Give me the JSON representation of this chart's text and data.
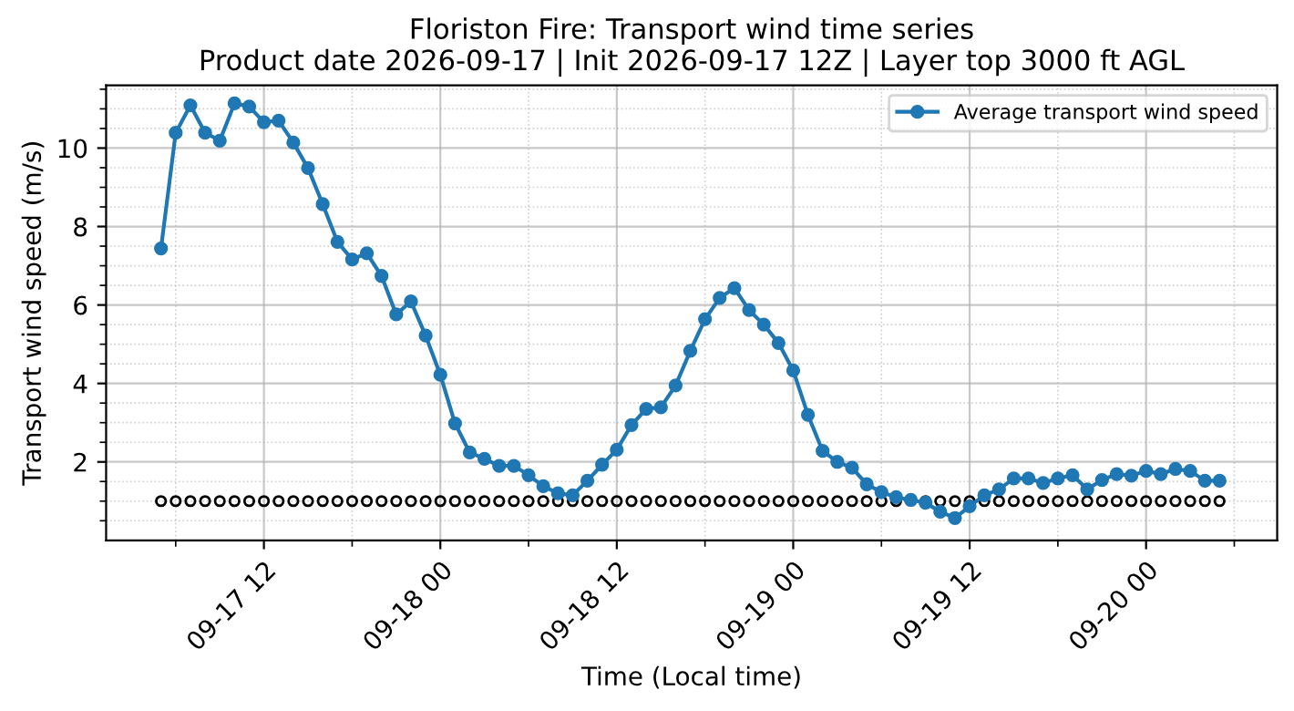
{
  "chart_data": {
    "type": "line",
    "title": "Floriston Fire: Transport wind time series\nProduct date 2026-09-17 | Init 2026-09-17 12Z | Layer top 3000 ft AGL",
    "xlabel": "Time (Local time)",
    "ylabel": "Transport wind speed (m/s)",
    "x": [
      "2026-09-17T05:00",
      "2026-09-17T06:00",
      "2026-09-17T07:00",
      "2026-09-17T08:00",
      "2026-09-17T09:00",
      "2026-09-17T10:00",
      "2026-09-17T11:00",
      "2026-09-17T12:00",
      "2026-09-17T13:00",
      "2026-09-17T14:00",
      "2026-09-17T15:00",
      "2026-09-17T16:00",
      "2026-09-17T17:00",
      "2026-09-17T18:00",
      "2026-09-17T19:00",
      "2026-09-17T20:00",
      "2026-09-17T21:00",
      "2026-09-17T22:00",
      "2026-09-17T23:00",
      "2026-09-18T00:00",
      "2026-09-18T01:00",
      "2026-09-18T02:00",
      "2026-09-18T03:00",
      "2026-09-18T04:00",
      "2026-09-18T05:00",
      "2026-09-18T06:00",
      "2026-09-18T07:00",
      "2026-09-18T08:00",
      "2026-09-18T09:00",
      "2026-09-18T10:00",
      "2026-09-18T11:00",
      "2026-09-18T12:00",
      "2026-09-18T13:00",
      "2026-09-18T14:00",
      "2026-09-18T15:00",
      "2026-09-18T16:00",
      "2026-09-18T17:00",
      "2026-09-18T18:00",
      "2026-09-18T19:00",
      "2026-09-18T20:00",
      "2026-09-18T21:00",
      "2026-09-18T22:00",
      "2026-09-18T23:00",
      "2026-09-19T00:00",
      "2026-09-19T01:00",
      "2026-09-19T02:00",
      "2026-09-19T03:00",
      "2026-09-19T04:00",
      "2026-09-19T05:00",
      "2026-09-19T06:00",
      "2026-09-19T07:00",
      "2026-09-19T08:00",
      "2026-09-19T09:00",
      "2026-09-19T10:00",
      "2026-09-19T11:00",
      "2026-09-19T12:00",
      "2026-09-19T13:00",
      "2026-09-19T14:00",
      "2026-09-19T15:00",
      "2026-09-19T16:00",
      "2026-09-19T17:00",
      "2026-09-19T18:00",
      "2026-09-19T19:00",
      "2026-09-19T20:00",
      "2026-09-19T21:00",
      "2026-09-19T22:00",
      "2026-09-19T23:00",
      "2026-09-20T00:00",
      "2026-09-20T01:00",
      "2026-09-20T02:00",
      "2026-09-20T03:00",
      "2026-09-20T04:00",
      "2026-09-20T05:00"
    ],
    "series": [
      {
        "name": "Average transport wind speed",
        "color": "#1f77b4",
        "marker": "circle",
        "line_style": "solid",
        "values": [
          7.44,
          10.39,
          11.09,
          10.39,
          10.19,
          11.14,
          11.06,
          10.66,
          10.7,
          10.14,
          9.49,
          8.57,
          7.61,
          7.16,
          7.32,
          6.74,
          5.76,
          6.09,
          5.22,
          4.22,
          2.98,
          2.24,
          2.08,
          1.9,
          1.9,
          1.66,
          1.38,
          1.2,
          1.15,
          1.52,
          1.93,
          2.31,
          2.94,
          3.35,
          3.39,
          3.95,
          4.83,
          5.64,
          6.18,
          6.43,
          5.87,
          5.5,
          5.03,
          4.33,
          3.2,
          2.28,
          2.0,
          1.85,
          1.43,
          1.23,
          1.1,
          1.03,
          0.96,
          0.73,
          0.57,
          0.87,
          1.15,
          1.3,
          1.58,
          1.58,
          1.46,
          1.58,
          1.66,
          1.3,
          1.54,
          1.69,
          1.65,
          1.77,
          1.69,
          1.82,
          1.77,
          1.52,
          1.52
        ]
      },
      {
        "type": "scatter",
        "color": "#000000",
        "marker": "circle",
        "values": [
          1,
          1,
          1,
          1,
          1,
          1,
          1,
          1,
          1,
          1,
          1,
          1,
          1,
          1,
          1,
          1,
          1,
          1,
          1,
          1,
          1,
          1,
          1,
          1,
          1,
          1,
          1,
          1,
          1,
          1,
          1,
          1,
          1,
          1,
          1,
          1,
          1,
          1,
          1,
          1,
          1,
          1,
          1,
          1,
          1,
          1,
          1,
          1,
          1,
          1,
          1,
          null,
          1,
          1,
          1,
          1,
          1,
          1,
          1,
          1,
          1,
          1,
          1,
          1,
          1,
          1,
          1,
          1,
          1,
          1,
          1,
          1,
          1
        ]
      }
    ],
    "xlim": [
      "2026-09-17T01:16",
      "2026-09-20T08:55"
    ],
    "xticks": [
      {
        "value": "2026-09-17T06:00",
        "label": null
      },
      {
        "value": "2026-09-17T12:00",
        "label": "09-17 12"
      },
      {
        "value": "2026-09-17T18:00",
        "label": null
      },
      {
        "value": "2026-09-18T00:00",
        "label": "09-18 00"
      },
      {
        "value": "2026-09-18T06:00",
        "label": null
      },
      {
        "value": "2026-09-18T12:00",
        "label": "09-18 12"
      },
      {
        "value": "2026-09-18T18:00",
        "label": null
      },
      {
        "value": "2026-09-19T00:00",
        "label": "09-19 00"
      },
      {
        "value": "2026-09-19T06:00",
        "label": null
      },
      {
        "value": "2026-09-19T12:00",
        "label": "09-19 12"
      },
      {
        "value": "2026-09-19T18:00",
        "label": null
      },
      {
        "value": "2026-09-20T00:00",
        "label": "09-20 00"
      },
      {
        "value": "2026-09-20T06:00",
        "label": null
      }
    ],
    "ylim": [
      0,
      11.6
    ],
    "yticks": [
      {
        "value": 0.5,
        "label": null
      },
      {
        "value": 1,
        "label": null
      },
      {
        "value": 1.5,
        "label": null
      },
      2,
      {
        "value": 2.5,
        "label": null
      },
      {
        "value": 3,
        "label": null
      },
      {
        "value": 3.5,
        "label": null
      },
      4,
      {
        "value": 4.5,
        "label": null
      },
      {
        "value": 5,
        "label": null
      },
      {
        "value": 5.5,
        "label": null
      },
      6,
      {
        "value": 6.5,
        "label": null
      },
      {
        "value": 7,
        "label": null
      },
      {
        "value": 7.5,
        "label": null
      },
      8,
      {
        "value": 8.5,
        "label": null
      },
      {
        "value": 9,
        "label": null
      },
      {
        "value": 9.5,
        "label": null
      },
      10,
      {
        "value": 10.5,
        "label": null
      },
      {
        "value": 11,
        "label": null
      },
      {
        "value": 11.5,
        "label": null
      }
    ],
    "grid": true,
    "legend": "top right"
  }
}
